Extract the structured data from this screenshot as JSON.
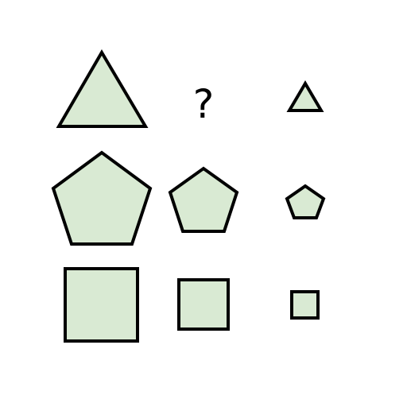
{
  "puzzle": {
    "missing_cell_label": "?",
    "fill_color": "#d9ead3",
    "stroke_color": "#000000",
    "rows": [
      {
        "shape": "triangle",
        "cells": [
          "large-triangle",
          "missing",
          "small-triangle"
        ]
      },
      {
        "shape": "pentagon",
        "cells": [
          "large-pentagon",
          "medium-pentagon",
          "small-pentagon"
        ]
      },
      {
        "shape": "square",
        "cells": [
          "large-square",
          "medium-square",
          "small-square"
        ]
      }
    ]
  }
}
